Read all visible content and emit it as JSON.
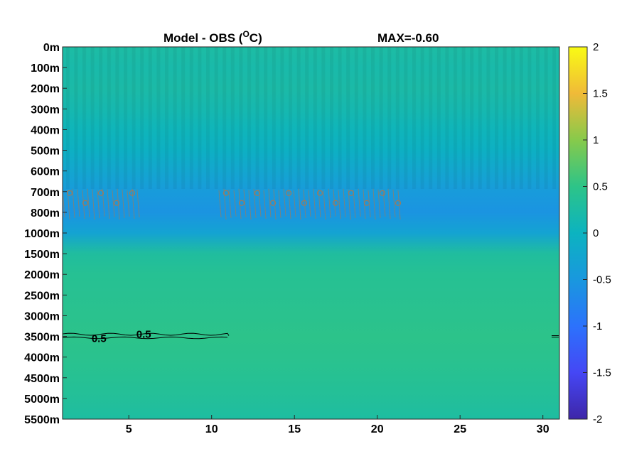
{
  "chart_data": {
    "type": "heatmap",
    "title_left": "Model - OBS (",
    "title_unit_sup": "O",
    "title_unit_tail": "C)",
    "title_right": "MAX=-0.60",
    "x": {
      "ticks": [
        5,
        10,
        15,
        20,
        25,
        30
      ],
      "lim": [
        1,
        31
      ]
    },
    "y": {
      "tick_labels": [
        "0m",
        "100m",
        "200m",
        "300m",
        "400m",
        "500m",
        "600m",
        "700m",
        "800m",
        "1000m",
        "1500m",
        "2000m",
        "2500m",
        "3000m",
        "3500m",
        "4000m",
        "4500m",
        "5000m",
        "5500m"
      ]
    },
    "colorbar": {
      "ticks": [
        2,
        1.5,
        1,
        0.5,
        0,
        -0.5,
        -1,
        -1.5,
        -2
      ],
      "lim": [
        -2,
        2
      ],
      "colormap": "parula"
    },
    "field_profile": [
      {
        "level": 0,
        "value": 0.25
      },
      {
        "level": 1,
        "value": 0.2
      },
      {
        "level": 2,
        "value": 0.22
      },
      {
        "level": 3,
        "value": 0.15
      },
      {
        "level": 4,
        "value": 0.05
      },
      {
        "level": 5,
        "value": -0.05
      },
      {
        "level": 6,
        "value": -0.25
      },
      {
        "level": 7,
        "value": -0.45
      },
      {
        "level": 8,
        "value": -0.55
      },
      {
        "level": 9,
        "value": -0.3
      },
      {
        "level": 10,
        "value": 0.3
      },
      {
        "level": 11,
        "value": 0.4
      },
      {
        "level": 12,
        "value": 0.42
      },
      {
        "level": 13,
        "value": 0.45
      },
      {
        "level": 14,
        "value": 0.48
      },
      {
        "level": 15,
        "value": 0.45
      },
      {
        "level": 16,
        "value": 0.4
      },
      {
        "level": 17,
        "value": 0.35
      },
      {
        "level": 18,
        "value": 0.28
      }
    ],
    "contour_labels": [
      {
        "text": "0.5",
        "x": 3.2,
        "level": 14.1
      },
      {
        "text": "0.5",
        "x": 5.9,
        "level": 13.9
      }
    ],
    "grid": false
  }
}
